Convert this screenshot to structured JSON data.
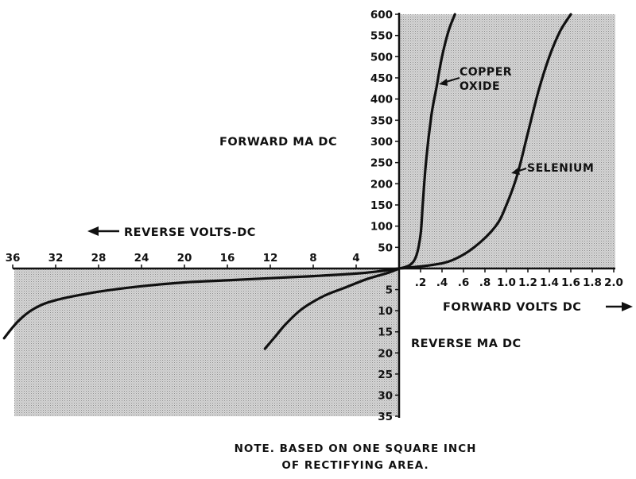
{
  "chart_data": {
    "type": "line",
    "labels": {
      "forward_ma": "FORWARD MA DC",
      "reverse_volts": "REVERSE VOLTS-DC",
      "forward_volts": "FORWARD VOLTS DC",
      "reverse_ma": "REVERSE MA DC"
    },
    "note_lines": [
      "NOTE. BASED ON ONE SQUARE INCH",
      "OF RECTIFYING AREA."
    ],
    "ticks": {
      "forward_ma": [
        "50",
        "100",
        "150",
        "200",
        "250",
        "300",
        "350",
        "400",
        "450",
        "500",
        "550",
        "600"
      ],
      "reverse_volts": [
        "4",
        "8",
        "12",
        "16",
        "20",
        "24",
        "28",
        "32",
        "36"
      ],
      "forward_volts": [
        ".2",
        ".4",
        ".6",
        ".8",
        "1.0",
        "1.2",
        "1.4",
        "1.6",
        "1.8",
        "2.0"
      ],
      "reverse_ma": [
        "5",
        "10",
        "15",
        "20",
        "25",
        "30",
        "35"
      ]
    },
    "ranges": {
      "forward_ma": [
        0,
        600
      ],
      "reverse_ma": [
        0,
        35
      ],
      "forward_volts": [
        0,
        2.0
      ],
      "reverse_volts": [
        0,
        36
      ]
    },
    "series": [
      {
        "name": "COPPER OXIDE",
        "forward": [
          [
            0,
            0
          ],
          [
            0.1,
            8
          ],
          [
            0.16,
            30
          ],
          [
            0.2,
            80
          ],
          [
            0.22,
            150
          ],
          [
            0.25,
            250
          ],
          [
            0.3,
            360
          ],
          [
            0.35,
            430
          ],
          [
            0.4,
            500
          ],
          [
            0.46,
            560
          ],
          [
            0.52,
            600
          ]
        ],
        "reverse": [
          [
            0,
            0
          ],
          [
            2,
            0.7
          ],
          [
            4,
            1.2
          ],
          [
            8,
            1.8
          ],
          [
            12,
            2.3
          ],
          [
            16,
            2.8
          ],
          [
            20,
            3.3
          ],
          [
            24,
            4.2
          ],
          [
            28,
            5.5
          ],
          [
            32,
            7.5
          ],
          [
            34,
            9.5
          ],
          [
            35.5,
            12.5
          ],
          [
            36.8,
            16.5
          ]
        ]
      },
      {
        "name": "SELENIUM",
        "forward": [
          [
            0,
            0
          ],
          [
            0.3,
            8
          ],
          [
            0.5,
            20
          ],
          [
            0.7,
            50
          ],
          [
            0.9,
            100
          ],
          [
            1.0,
            150
          ],
          [
            1.1,
            220
          ],
          [
            1.2,
            320
          ],
          [
            1.3,
            420
          ],
          [
            1.4,
            500
          ],
          [
            1.5,
            560
          ],
          [
            1.6,
            600
          ]
        ],
        "reverse": [
          [
            0,
            0
          ],
          [
            1,
            1
          ],
          [
            3,
            2.5
          ],
          [
            5,
            4.5
          ],
          [
            7,
            6.5
          ],
          [
            9,
            9.5
          ],
          [
            10.5,
            13
          ],
          [
            11.5,
            16
          ],
          [
            12.5,
            19
          ]
        ]
      }
    ],
    "grid": false
  }
}
